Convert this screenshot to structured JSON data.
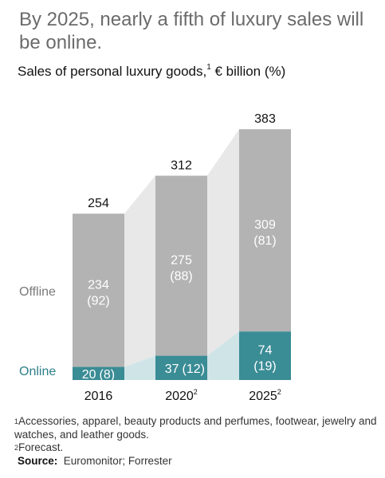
{
  "headline": "By 2025, nearly a fifth of luxury sales will be online.",
  "subtitle": {
    "main": "Sales of personal luxury goods,",
    "footnote_ref": "1",
    "unit": " € billion (%)"
  },
  "colors": {
    "offline": "#b3b3b3",
    "online": "#3a8c95",
    "connector_offline": "#e8e8e8",
    "connector_online": "#cfe4e6",
    "offline_label": "#7a7a7a",
    "online_label": "#2e7f88"
  },
  "chart_data": {
    "type": "bar",
    "stacked": true,
    "categories": [
      "2016",
      "2020",
      "2025"
    ],
    "category_superscripts": [
      "",
      "2",
      "2"
    ],
    "totals": [
      254,
      312,
      383
    ],
    "series": [
      {
        "name": "Online",
        "values": [
          20,
          37,
          74
        ],
        "shares_pct": [
          8,
          12,
          19
        ]
      },
      {
        "name": "Offline",
        "values": [
          234,
          275,
          309
        ],
        "shares_pct": [
          92,
          88,
          81
        ]
      }
    ],
    "value_labels": {
      "online_values": [
        "20",
        "37",
        "74"
      ],
      "online_shares": [
        "(8)",
        "(12)",
        "(19)"
      ],
      "offline_values": [
        "234",
        "275",
        "309"
      ],
      "offline_shares": [
        "(92)",
        "(88)",
        "(81)"
      ],
      "totals": [
        "254",
        "312",
        "383"
      ]
    }
  },
  "footnotes": {
    "note1_marker": "1",
    "note1": "Accessories, apparel, beauty products and perfumes, footwear, jewelry and watches, and leather goods.",
    "note2_marker": "2",
    "note2": "Forecast.",
    "source_label": "Source:",
    "source_text": "Euromonitor; Forrester"
  }
}
